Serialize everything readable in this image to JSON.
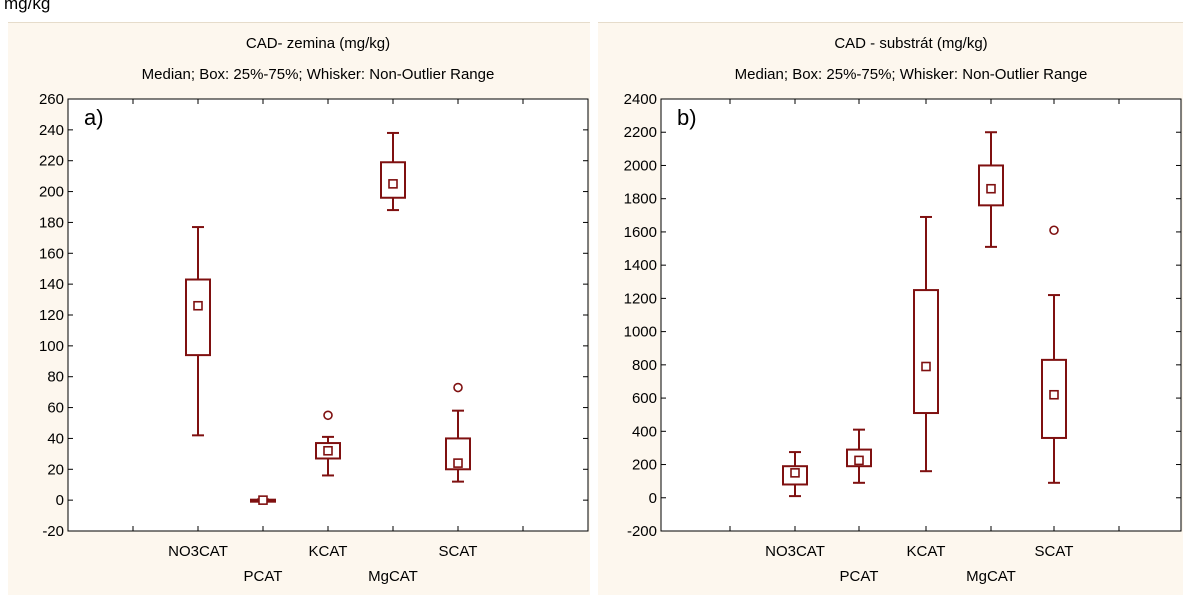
{
  "caption": "mg/kg",
  "colors": {
    "panel_background": "#fdf7ee",
    "plot_background": "#ffffff",
    "box": "#7f1010",
    "axis": "#000000"
  },
  "chart_data": [
    {
      "type": "boxplot",
      "panel_label": "a)",
      "title": "CAD- zemina (mg/kg)",
      "subtitle": "Median; Box: 25%-75%; Whisker: Non-Outlier Range",
      "categories": [
        "NO3CAT",
        "PCAT",
        "KCAT",
        "MgCAT",
        "SCAT"
      ],
      "ylim": [
        -20,
        260
      ],
      "yticks": [
        -20,
        0,
        20,
        40,
        60,
        80,
        100,
        120,
        140,
        160,
        180,
        200,
        220,
        240,
        260
      ],
      "grid": false,
      "boxes": [
        {
          "category": "NO3CAT",
          "whisker_low": 42,
          "q1": 94,
          "median": 126,
          "q3": 143,
          "whisker_high": 177,
          "outliers": []
        },
        {
          "category": "PCAT",
          "whisker_low": -0.5,
          "q1": -0.3,
          "median": 0,
          "q3": 0.3,
          "whisker_high": 0.5,
          "outliers": []
        },
        {
          "category": "KCAT",
          "whisker_low": 16,
          "q1": 27,
          "median": 32,
          "q3": 37,
          "whisker_high": 41,
          "outliers": [
            55
          ]
        },
        {
          "category": "MgCAT",
          "whisker_low": 188,
          "q1": 196,
          "median": 205,
          "q3": 219,
          "whisker_high": 238,
          "outliers": []
        },
        {
          "category": "SCAT",
          "whisker_low": 12,
          "q1": 20,
          "median": 24,
          "q3": 40,
          "whisker_high": 58,
          "outliers": [
            73
          ]
        }
      ]
    },
    {
      "type": "boxplot",
      "panel_label": "b)",
      "title": "CAD - substrát (mg/kg)",
      "subtitle": "Median; Box: 25%-75%; Whisker: Non-Outlier Range",
      "categories": [
        "NO3CAT",
        "PCAT",
        "KCAT",
        "MgCAT",
        "SCAT"
      ],
      "ylim": [
        -200,
        2400
      ],
      "yticks": [
        -200,
        0,
        200,
        400,
        600,
        800,
        1000,
        1200,
        1400,
        1600,
        1800,
        2000,
        2200,
        2400
      ],
      "grid": false,
      "boxes": [
        {
          "category": "NO3CAT",
          "whisker_low": 10,
          "q1": 80,
          "median": 150,
          "q3": 190,
          "whisker_high": 275,
          "outliers": []
        },
        {
          "category": "PCAT",
          "whisker_low": 90,
          "q1": 190,
          "median": 225,
          "q3": 290,
          "whisker_high": 410,
          "outliers": []
        },
        {
          "category": "KCAT",
          "whisker_low": 160,
          "q1": 510,
          "median": 790,
          "q3": 1250,
          "whisker_high": 1690,
          "outliers": []
        },
        {
          "category": "MgCAT",
          "whisker_low": 1510,
          "q1": 1760,
          "median": 1860,
          "q3": 2000,
          "whisker_high": 2200,
          "outliers": []
        },
        {
          "category": "SCAT",
          "whisker_low": 90,
          "q1": 360,
          "median": 620,
          "q3": 830,
          "whisker_high": 1220,
          "outliers": [
            1610
          ]
        }
      ]
    }
  ]
}
